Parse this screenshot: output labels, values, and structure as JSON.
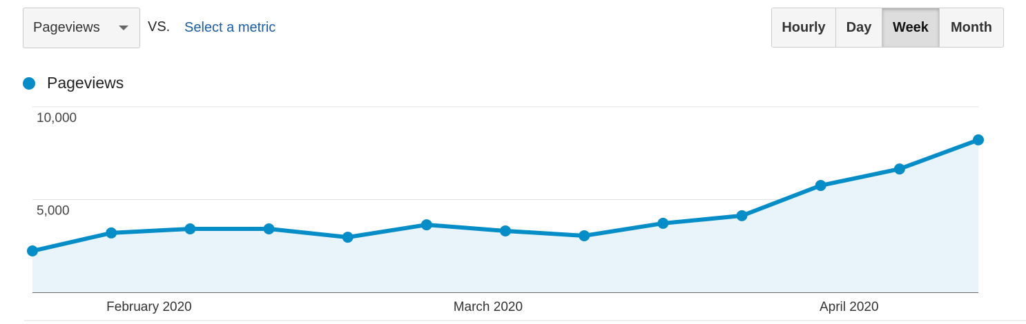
{
  "controls": {
    "metric_dropdown": "Pageviews",
    "vs": "VS.",
    "select_metric": "Select a metric",
    "intervals": [
      "Hourly",
      "Day",
      "Week",
      "Month"
    ],
    "selected_interval": 2
  },
  "chart_data": {
    "type": "line",
    "categories": [
      null,
      null,
      null,
      null,
      null,
      null,
      null,
      null,
      null,
      null,
      null,
      null,
      null
    ],
    "series": [
      {
        "name": "Pageviews",
        "color": "#058dc7",
        "values": [
          2230,
          3200,
          3420,
          3420,
          2970,
          3640,
          3310,
          3050,
          3720,
          4130,
          5760,
          6650,
          8220
        ]
      }
    ],
    "ylim": [
      0,
      10000
    ],
    "yticks": [
      {
        "value": 5000,
        "label": "5,000"
      },
      {
        "value": 10000,
        "label": "10,000"
      }
    ],
    "xticks": [
      {
        "value": 1.48,
        "label": "February 2020"
      },
      {
        "value": 5.78,
        "label": "March 2020"
      },
      {
        "value": 10.36,
        "label": "April 2020"
      }
    ],
    "grid": true,
    "area": true
  }
}
